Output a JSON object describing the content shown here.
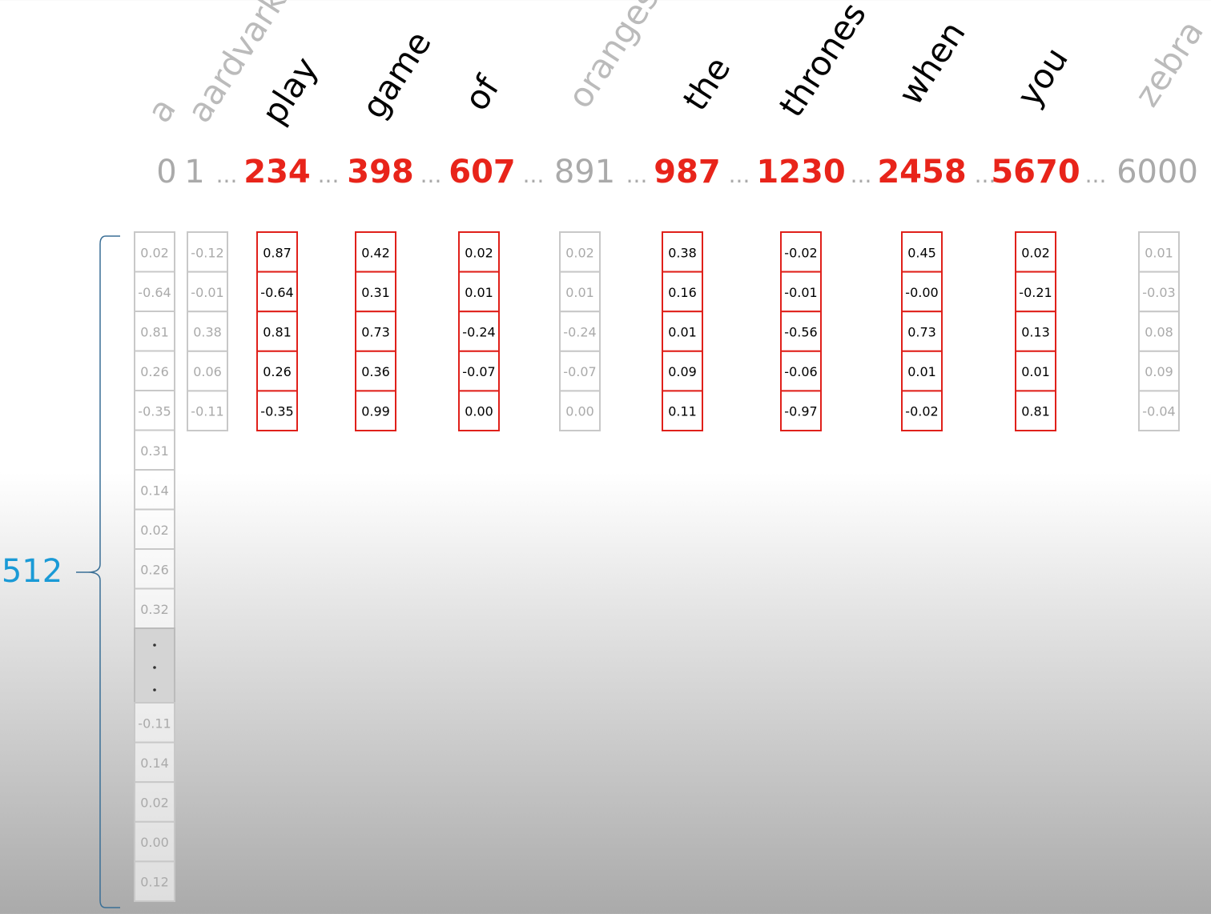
{
  "dimension_label": "512",
  "separator": "...",
  "columns": [
    {
      "word": "a",
      "index": "0",
      "selected": false,
      "values": [
        "0.02",
        "-0.64",
        "0.81",
        "0.26",
        "-0.35",
        "0.31",
        "0.14",
        "0.02",
        "0.26",
        "0.32"
      ],
      "tail_values": [
        "-0.11",
        "0.14",
        "0.02",
        "0.00",
        "0.12"
      ]
    },
    {
      "word": "aardvark",
      "index": "1",
      "selected": false,
      "values": [
        "-0.12",
        "-0.01",
        "0.38",
        "0.06",
        "-0.11"
      ]
    },
    {
      "word": "play",
      "index": "234",
      "selected": true,
      "values": [
        "0.87",
        "-0.64",
        "0.81",
        "0.26",
        "-0.35"
      ]
    },
    {
      "word": "game",
      "index": "398",
      "selected": true,
      "values": [
        "0.42",
        "0.31",
        "0.73",
        "0.36",
        "0.99"
      ]
    },
    {
      "word": "of",
      "index": "607",
      "selected": true,
      "values": [
        "0.02",
        "0.01",
        "-0.24",
        "-0.07",
        "0.00"
      ]
    },
    {
      "word": "oranges",
      "index": "891",
      "selected": false,
      "values": [
        "0.02",
        "0.01",
        "-0.24",
        "-0.07",
        "0.00"
      ]
    },
    {
      "word": "the",
      "index": "987",
      "selected": true,
      "values": [
        "0.38",
        "0.16",
        "0.01",
        "0.09",
        "0.11"
      ]
    },
    {
      "word": "thrones",
      "index": "1230",
      "selected": true,
      "values": [
        "-0.02",
        "-0.01",
        "-0.56",
        "-0.06",
        "-0.97"
      ]
    },
    {
      "word": "when",
      "index": "2458",
      "selected": true,
      "values": [
        "0.45",
        "-0.00",
        "0.73",
        "0.01",
        "-0.02"
      ]
    },
    {
      "word": "you",
      "index": "5670",
      "selected": true,
      "values": [
        "0.02",
        "-0.21",
        "0.13",
        "0.01",
        "0.81"
      ]
    },
    {
      "word": "zebra",
      "index": "6000",
      "selected": false,
      "values": [
        "0.01",
        "-0.03",
        "0.08",
        "0.09",
        "-0.04"
      ]
    }
  ]
}
